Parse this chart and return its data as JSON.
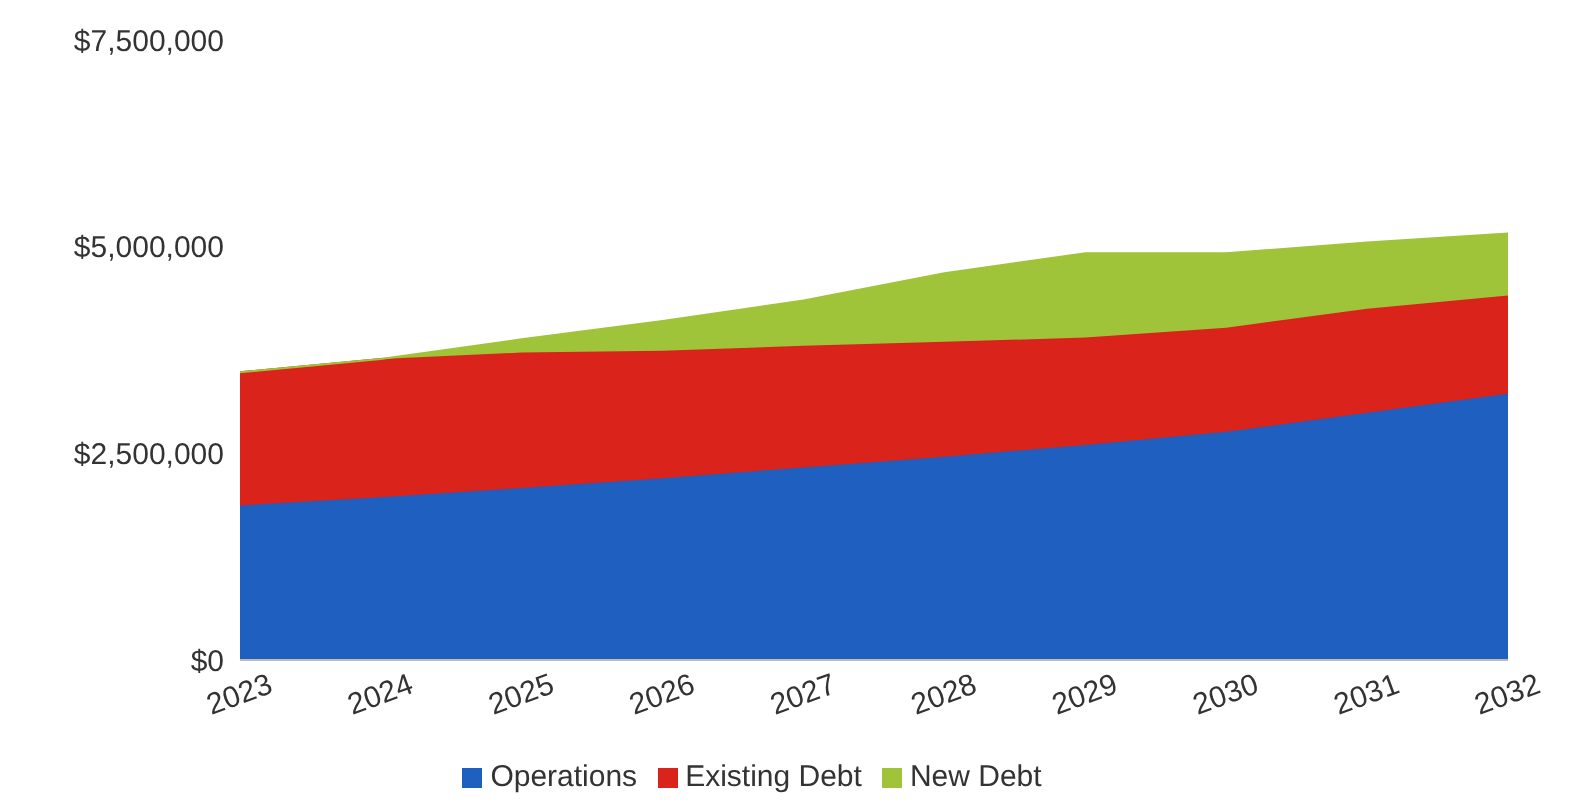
{
  "chart_data": {
    "type": "area",
    "stacked": true,
    "categories": [
      "2023",
      "2024",
      "2025",
      "2026",
      "2027",
      "2028",
      "2029",
      "2030",
      "2031",
      "2032"
    ],
    "series": [
      {
        "name": "Operations",
        "color": "#1f5fbf",
        "values": [
          1870000,
          1970000,
          2080000,
          2200000,
          2330000,
          2460000,
          2600000,
          2760000,
          2990000,
          3220000
        ]
      },
      {
        "name": "Existing Debt",
        "color": "#d9231b",
        "values": [
          1610000,
          1670000,
          1640000,
          1540000,
          1470000,
          1390000,
          1300000,
          1260000,
          1260000,
          1190000
        ]
      },
      {
        "name": "New Debt",
        "color": "#9fc43a",
        "values": [
          0,
          0,
          160000,
          360000,
          550000,
          830000,
          1020000,
          900000,
          800000,
          750000
        ]
      }
    ],
    "ylim": [
      0,
      7500000
    ],
    "yticks": [
      {
        "value": 0,
        "label": "$0"
      },
      {
        "value": 2500000,
        "label": "$2,500,000"
      },
      {
        "value": 5000000,
        "label": "$5,000,000"
      },
      {
        "value": 7500000,
        "label": "$7,500,000"
      }
    ],
    "grid": false,
    "legend": "bottom"
  }
}
